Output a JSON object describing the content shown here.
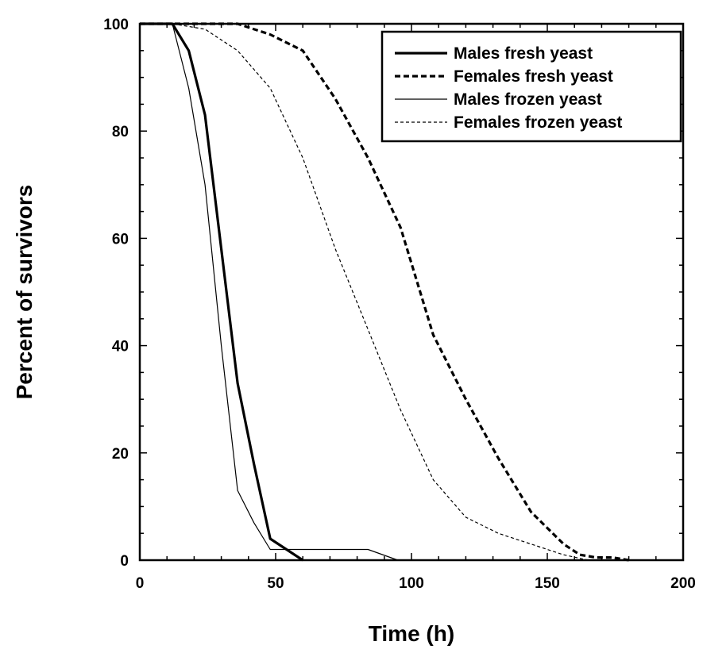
{
  "chart_data": {
    "type": "line",
    "title": "",
    "xlabel": "Time (h)",
    "ylabel": "Percent of survivors",
    "xlim": [
      0,
      200
    ],
    "ylim": [
      0,
      100
    ],
    "xticks": [
      0,
      50,
      100,
      150,
      200
    ],
    "yticks": [
      0,
      20,
      40,
      60,
      80,
      100
    ],
    "xtick_labels": [
      "0",
      "50",
      "100",
      "150",
      "200"
    ],
    "ytick_labels": [
      "0",
      "20",
      "40",
      "60",
      "80",
      "100"
    ],
    "grid": false,
    "legend_position": "top-right",
    "series": [
      {
        "name": "Males fresh yeast",
        "style": "solid",
        "weight": "thick",
        "color": "#000000",
        "x": [
          0,
          12,
          18,
          24,
          30,
          36,
          42,
          48,
          54,
          60
        ],
        "y": [
          100,
          100,
          95,
          83,
          58,
          33,
          18,
          4,
          2,
          0
        ]
      },
      {
        "name": "Females fresh yeast",
        "style": "dashed",
        "weight": "thick",
        "color": "#000000",
        "x": [
          0,
          24,
          36,
          48,
          60,
          72,
          84,
          96,
          108,
          120,
          132,
          144,
          156,
          162,
          168,
          174,
          180
        ],
        "y": [
          100,
          100,
          100,
          98,
          95,
          86,
          75,
          62,
          42,
          30,
          19,
          9,
          3,
          1,
          0.5,
          0.5,
          0
        ]
      },
      {
        "name": "Males frozen yeast",
        "style": "solid",
        "weight": "thin",
        "color": "#000000",
        "x": [
          0,
          12,
          18,
          24,
          30,
          36,
          42,
          48,
          54,
          60,
          72,
          84,
          95
        ],
        "y": [
          100,
          100,
          88,
          70,
          40,
          13,
          7,
          2,
          2,
          2,
          2,
          2,
          0
        ]
      },
      {
        "name": "Females frozen yeast",
        "style": "dashed",
        "weight": "thin",
        "color": "#000000",
        "x": [
          0,
          12,
          24,
          36,
          48,
          60,
          72,
          84,
          96,
          108,
          120,
          132,
          144,
          156,
          165
        ],
        "y": [
          100,
          100,
          99,
          95,
          88,
          75,
          58,
          43,
          28,
          15,
          8,
          5,
          3,
          1,
          0
        ]
      }
    ]
  }
}
